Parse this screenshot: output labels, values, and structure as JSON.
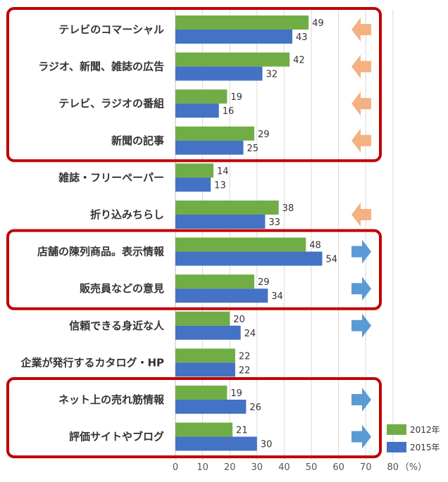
{
  "chart_data": {
    "type": "bar",
    "orientation": "horizontal",
    "categories": [
      "テレビのコマーシャル",
      "ラジオ、新聞、雑誌の広告",
      "テレビ、ラジオの番組",
      "新聞の記事",
      "雑誌・フリーペーパー",
      "折り込みちらし",
      "店舗の陳列商品。表示情報",
      "販売員などの意見",
      "信頼できる身近な人",
      "企業が発行するカタログ・HP",
      "ネット上の売れ筋情報",
      "評価サイトやブログ"
    ],
    "series": [
      {
        "name": "2012年",
        "color": "#70ad47",
        "values": [
          49,
          42,
          19,
          29,
          14,
          38,
          48,
          29,
          20,
          22,
          19,
          21
        ]
      },
      {
        "name": "2015年",
        "color": "#4472c4",
        "values": [
          43,
          32,
          16,
          25,
          13,
          33,
          54,
          34,
          24,
          22,
          26,
          30
        ]
      }
    ],
    "x_ticks": [
      "0",
      "10",
      "20",
      "30",
      "40",
      "50",
      "60",
      "70",
      "80"
    ],
    "x_unit": "（%）",
    "xlim": [
      0,
      80
    ],
    "grid": true,
    "legend_position": "bottom-right",
    "trend_arrows": [
      "down",
      "down",
      "down",
      "down",
      "none",
      "down",
      "up",
      "up",
      "up",
      "none",
      "up",
      "up"
    ],
    "arrow_colors": {
      "down": "#f4b183",
      "up": "#5b9bd5"
    },
    "highlight_groups": [
      [
        0,
        3
      ],
      [
        6,
        7
      ],
      [
        10,
        11
      ]
    ],
    "highlight_color": "#c00000"
  }
}
